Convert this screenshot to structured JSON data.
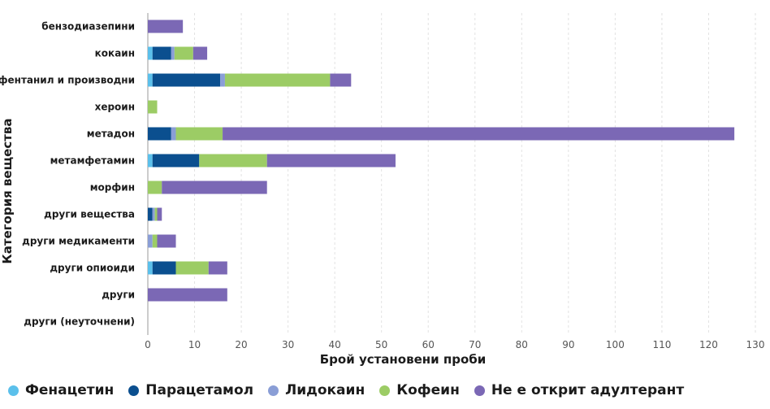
{
  "chart_data": {
    "type": "bar",
    "orientation": "horizontal",
    "stacked": true,
    "title": "",
    "xlabel": "Брой установени проби",
    "ylabel": "Категория вещества",
    "xlim": [
      0,
      130
    ],
    "xticks": [
      0,
      10,
      20,
      30,
      40,
      50,
      60,
      70,
      80,
      90,
      100,
      110,
      120,
      130
    ],
    "grid": "vertical-dashed",
    "legend_position": "bottom",
    "categories": [
      "бензодиазепини",
      "кокаин",
      "фентанил и производни",
      "хероин",
      "метадон",
      "метамфетамин",
      "морфин",
      "други вещества",
      "други медикаменти",
      "други опиоиди",
      "други",
      "други (неуточнени)"
    ],
    "series": [
      {
        "name": "Фенацетин",
        "color": "#5bc0eb",
        "values": [
          0,
          1,
          1,
          0,
          0,
          1,
          0,
          0,
          0,
          1,
          0,
          0
        ]
      },
      {
        "name": "Парацетамол",
        "color": "#0b4f8f",
        "values": [
          0,
          4,
          14.5,
          0,
          5,
          10,
          0,
          1,
          0,
          5,
          0,
          0
        ]
      },
      {
        "name": "Лидокаин",
        "color": "#8a9ed6",
        "values": [
          0,
          0.7,
          1,
          0,
          1,
          0,
          0,
          0.5,
          1,
          0,
          0,
          0
        ]
      },
      {
        "name": "Кофеин",
        "color": "#9ccc65",
        "values": [
          0,
          4,
          22.5,
          2,
          10,
          14.5,
          3,
          0.5,
          1,
          7,
          0,
          0
        ]
      },
      {
        "name": "Не е открит адултерант",
        "color": "#7b68b5",
        "values": [
          7.5,
          3,
          4.5,
          0,
          109.5,
          27.5,
          22.5,
          1,
          4,
          4,
          17,
          0
        ]
      }
    ]
  }
}
